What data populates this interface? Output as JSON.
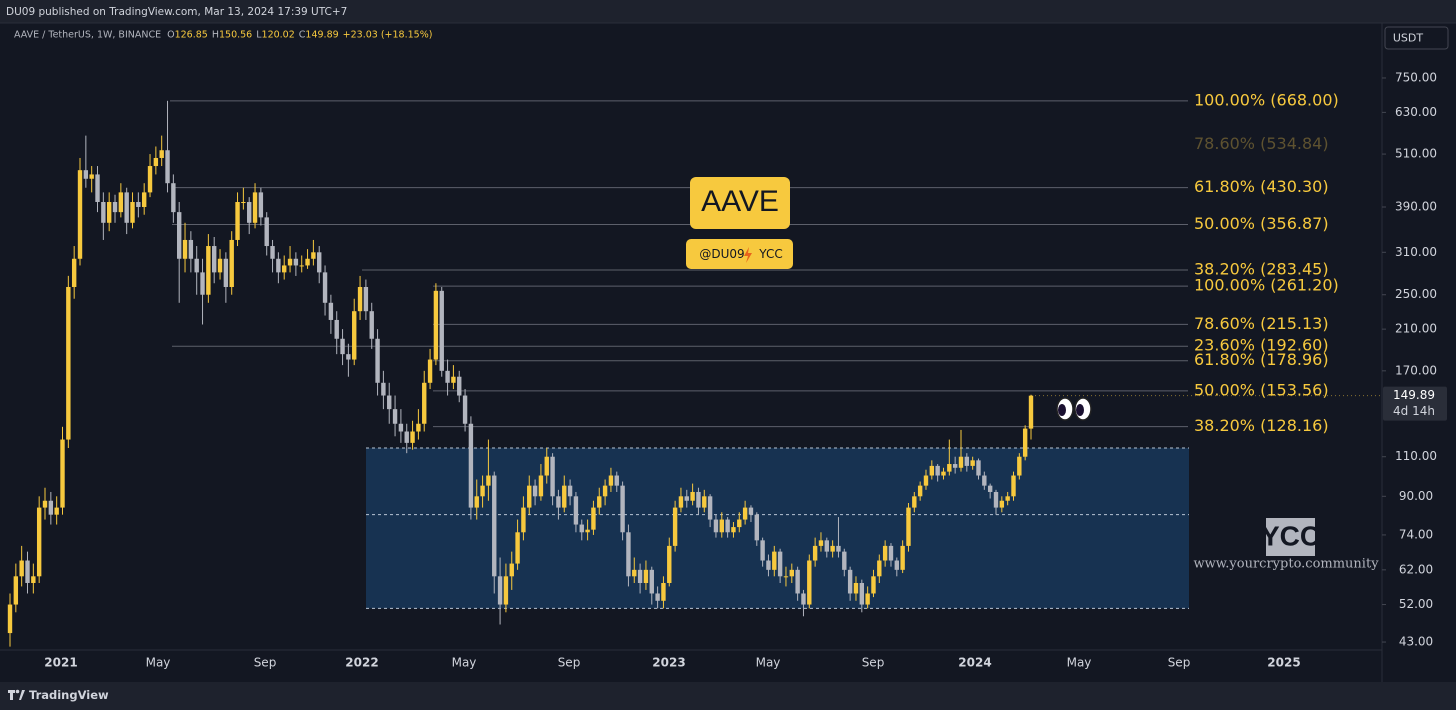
{
  "header": {
    "published": "DU09 published on TradingView.com, Mar 13, 2024 17:39 UTC+7"
  },
  "symbol": {
    "name": "AAVE / TetherUS, 1W, BINANCE",
    "ohlc": [
      {
        "label": "O",
        "value": "126.85"
      },
      {
        "label": "H",
        "value": "150.56"
      },
      {
        "label": "L",
        "value": "120.02"
      },
      {
        "label": "C",
        "value": "149.89"
      }
    ],
    "change": "+23.03 (+18.15%)"
  },
  "currency": "USDT",
  "badge": {
    "title": "AAVE",
    "author": "@DU09",
    "group": "YCC"
  },
  "watermark": {
    "logo": "YCC",
    "url": "www.yourcrypto.community"
  },
  "footer": {
    "brand": "TradingView"
  },
  "chart_data": {
    "type": "candlestick",
    "log_scale": true,
    "up_color": "#f7c93e",
    "down_color": "#b2b5be",
    "ylim": [
      41.3,
      986
    ],
    "yticks": [
      {
        "value": 750,
        "label": "750.00"
      },
      {
        "value": 630,
        "label": "630.00"
      },
      {
        "value": 510,
        "label": "510.00"
      },
      {
        "value": 390,
        "label": "390.00"
      },
      {
        "value": 310,
        "label": "310.00"
      },
      {
        "value": 250,
        "label": "250.00"
      },
      {
        "value": 210,
        "label": "210.00"
      },
      {
        "value": 170,
        "label": "170.00"
      },
      {
        "value": 110,
        "label": "110.00"
      },
      {
        "value": 90,
        "label": "90.00"
      },
      {
        "value": 74,
        "label": "74.00"
      },
      {
        "value": 62,
        "label": "62.00"
      },
      {
        "value": 52,
        "label": "52.00"
      },
      {
        "value": 43,
        "label": "43.00"
      }
    ],
    "time_labels": [
      "2021",
      "May",
      "Sep",
      "2022",
      "May",
      "Sep",
      "2023",
      "May",
      "Sep",
      "2024",
      "May",
      "Sep",
      "2025"
    ],
    "last_price_label": "149.89",
    "countdown": "4d 14h",
    "range_box": {
      "top": 115,
      "mid": 82,
      "bottom": 51,
      "color": "#183557"
    },
    "fib_sets": [
      {
        "levels": [
          {
            "label": "100.00% (668.00)",
            "value": 668
          },
          {
            "label": "78.60% (534.84)",
            "value": 534.84,
            "faded": true
          },
          {
            "label": "61.80% (430.30)",
            "value": 430.3
          },
          {
            "label": "50.00% (356.87)",
            "value": 356.87
          },
          {
            "label": "38.20% (283.45)",
            "value": 283.45
          },
          {
            "label": "23.60% (192.60)",
            "value": 192.6
          }
        ]
      },
      {
        "levels": [
          {
            "label": "100.00% (261.20)",
            "value": 261.2
          },
          {
            "label": "78.60% (215.13)",
            "value": 215.13
          },
          {
            "label": "61.80% (178.96)",
            "value": 178.96
          },
          {
            "label": "50.00% (153.56)",
            "value": 153.56
          },
          {
            "label": "38.20% (128.16)",
            "value": 128.16
          }
        ]
      }
    ],
    "candles": [
      [
        45,
        55,
        42,
        52
      ],
      [
        52,
        64,
        50,
        60
      ],
      [
        60,
        70,
        57,
        65
      ],
      [
        65,
        68,
        55,
        58
      ],
      [
        58,
        64,
        55,
        60
      ],
      [
        60,
        90,
        58,
        85
      ],
      [
        85,
        94,
        80,
        88
      ],
      [
        88,
        92,
        78,
        82
      ],
      [
        82,
        90,
        78,
        85
      ],
      [
        85,
        128,
        82,
        120
      ],
      [
        120,
        275,
        115,
        260
      ],
      [
        260,
        320,
        245,
        300
      ],
      [
        300,
        500,
        290,
        470
      ],
      [
        470,
        560,
        430,
        450
      ],
      [
        450,
        480,
        420,
        460
      ],
      [
        460,
        480,
        380,
        400
      ],
      [
        400,
        420,
        330,
        360
      ],
      [
        360,
        420,
        345,
        400
      ],
      [
        400,
        415,
        360,
        380
      ],
      [
        380,
        440,
        370,
        420
      ],
      [
        420,
        430,
        340,
        360
      ],
      [
        360,
        420,
        350,
        400
      ],
      [
        400,
        420,
        370,
        390
      ],
      [
        390,
        440,
        375,
        420
      ],
      [
        420,
        510,
        410,
        480
      ],
      [
        480,
        530,
        460,
        500
      ],
      [
        500,
        560,
        480,
        520
      ],
      [
        520,
        668,
        420,
        440
      ],
      [
        440,
        460,
        360,
        380
      ],
      [
        380,
        400,
        240,
        300
      ],
      [
        300,
        360,
        280,
        330
      ],
      [
        330,
        345,
        280,
        300
      ],
      [
        300,
        320,
        250,
        280
      ],
      [
        280,
        300,
        215,
        250
      ],
      [
        250,
        340,
        240,
        320
      ],
      [
        320,
        335,
        265,
        280
      ],
      [
        280,
        315,
        270,
        300
      ],
      [
        300,
        310,
        240,
        260
      ],
      [
        260,
        345,
        250,
        330
      ],
      [
        330,
        420,
        320,
        400
      ],
      [
        400,
        430,
        385,
        400
      ],
      [
        400,
        410,
        340,
        360
      ],
      [
        360,
        440,
        350,
        420
      ],
      [
        420,
        430,
        355,
        370
      ],
      [
        370,
        380,
        305,
        320
      ],
      [
        320,
        330,
        280,
        300
      ],
      [
        300,
        310,
        265,
        280
      ],
      [
        280,
        305,
        270,
        290
      ],
      [
        290,
        320,
        280,
        300
      ],
      [
        300,
        310,
        275,
        290
      ],
      [
        290,
        305,
        280,
        290
      ],
      [
        290,
        315,
        285,
        300
      ],
      [
        300,
        330,
        290,
        310
      ],
      [
        310,
        320,
        265,
        280
      ],
      [
        280,
        290,
        225,
        240
      ],
      [
        240,
        250,
        205,
        220
      ],
      [
        220,
        230,
        185,
        200
      ],
      [
        200,
        210,
        175,
        185
      ],
      [
        185,
        195,
        165,
        180
      ],
      [
        180,
        245,
        175,
        230
      ],
      [
        230,
        275,
        220,
        260
      ],
      [
        260,
        270,
        220,
        230
      ],
      [
        230,
        240,
        190,
        200
      ],
      [
        200,
        210,
        150,
        160
      ],
      [
        160,
        170,
        140,
        150
      ],
      [
        150,
        160,
        130,
        140
      ],
      [
        140,
        150,
        122,
        130
      ],
      [
        130,
        140,
        118,
        125
      ],
      [
        125,
        130,
        112,
        118
      ],
      [
        118,
        132,
        114,
        125
      ],
      [
        125,
        140,
        120,
        130
      ],
      [
        130,
        170,
        125,
        160
      ],
      [
        160,
        190,
        155,
        180
      ],
      [
        180,
        265,
        175,
        255
      ],
      [
        255,
        260,
        165,
        170
      ],
      [
        170,
        180,
        150,
        160
      ],
      [
        160,
        175,
        155,
        165
      ],
      [
        165,
        170,
        145,
        150
      ],
      [
        150,
        155,
        125,
        130
      ],
      [
        130,
        135,
        80,
        85
      ],
      [
        85,
        98,
        80,
        90
      ],
      [
        90,
        100,
        85,
        95
      ],
      [
        95,
        120,
        88,
        100
      ],
      [
        100,
        102,
        55,
        60
      ],
      [
        60,
        66,
        47,
        52
      ],
      [
        52,
        64,
        50,
        60
      ],
      [
        60,
        68,
        56,
        64
      ],
      [
        64,
        80,
        62,
        75
      ],
      [
        75,
        90,
        72,
        85
      ],
      [
        85,
        100,
        82,
        95
      ],
      [
        95,
        98,
        86,
        90
      ],
      [
        90,
        106,
        88,
        100
      ],
      [
        100,
        115,
        96,
        110
      ],
      [
        110,
        112,
        86,
        90
      ],
      [
        90,
        93,
        80,
        85
      ],
      [
        85,
        100,
        83,
        95
      ],
      [
        95,
        98,
        86,
        90
      ],
      [
        90,
        92,
        75,
        78
      ],
      [
        78,
        80,
        72,
        75
      ],
      [
        75,
        80,
        72,
        76
      ],
      [
        76,
        88,
        74,
        85
      ],
      [
        85,
        94,
        82,
        90
      ],
      [
        90,
        98,
        86,
        95
      ],
      [
        95,
        104,
        92,
        100
      ],
      [
        100,
        102,
        92,
        95
      ],
      [
        95,
        97,
        72,
        75
      ],
      [
        75,
        78,
        57,
        60
      ],
      [
        60,
        66,
        58,
        62
      ],
      [
        62,
        64,
        55,
        58
      ],
      [
        58,
        65,
        56,
        62
      ],
      [
        62,
        63,
        52,
        55
      ],
      [
        55,
        57,
        51,
        53
      ],
      [
        53,
        60,
        51,
        58
      ],
      [
        58,
        73,
        57,
        70
      ],
      [
        70,
        88,
        68,
        85
      ],
      [
        85,
        94,
        83,
        90
      ],
      [
        90,
        93,
        85,
        88
      ],
      [
        88,
        96,
        86,
        92
      ],
      [
        92,
        94,
        82,
        85
      ],
      [
        85,
        93,
        83,
        90
      ],
      [
        90,
        91,
        77,
        80
      ],
      [
        80,
        82,
        73,
        75
      ],
      [
        75,
        83,
        73,
        80
      ],
      [
        80,
        81,
        73,
        75
      ],
      [
        75,
        79,
        73,
        77
      ],
      [
        77,
        83,
        75,
        80
      ],
      [
        80,
        88,
        78,
        85
      ],
      [
        85,
        86,
        79,
        82
      ],
      [
        82,
        83,
        70,
        72
      ],
      [
        72,
        73,
        63,
        65
      ],
      [
        65,
        67,
        60,
        62
      ],
      [
        62,
        70,
        60,
        68
      ],
      [
        68,
        69,
        58,
        60
      ],
      [
        60,
        63,
        57,
        60
      ],
      [
        60,
        64,
        58,
        62
      ],
      [
        62,
        63,
        53,
        55
      ],
      [
        55,
        56,
        49,
        52
      ],
      [
        52,
        67,
        51,
        65
      ],
      [
        65,
        73,
        63,
        70
      ],
      [
        70,
        75,
        68,
        72
      ],
      [
        72,
        73,
        66,
        68
      ],
      [
        68,
        72,
        66,
        70
      ],
      [
        70,
        81,
        66,
        68
      ],
      [
        68,
        69,
        60,
        62
      ],
      [
        62,
        63,
        53,
        55
      ],
      [
        55,
        60,
        53,
        58
      ],
      [
        58,
        59,
        50,
        52
      ],
      [
        52,
        57,
        51,
        55
      ],
      [
        55,
        62,
        54,
        60
      ],
      [
        60,
        67,
        58,
        65
      ],
      [
        65,
        72,
        63,
        70
      ],
      [
        70,
        71,
        63,
        65
      ],
      [
        65,
        66,
        60,
        62
      ],
      [
        62,
        72,
        61,
        70
      ],
      [
        70,
        87,
        68,
        85
      ],
      [
        85,
        92,
        83,
        90
      ],
      [
        90,
        97,
        88,
        95
      ],
      [
        95,
        103,
        93,
        100
      ],
      [
        100,
        108,
        98,
        105
      ],
      [
        105,
        106,
        97,
        100
      ],
      [
        100,
        104,
        98,
        102
      ],
      [
        102,
        120,
        100,
        106
      ],
      [
        106,
        110,
        101,
        104
      ],
      [
        104,
        126,
        102,
        110
      ],
      [
        110,
        112,
        102,
        105
      ],
      [
        105,
        110,
        103,
        108
      ],
      [
        108,
        109,
        98,
        100
      ],
      [
        100,
        102,
        93,
        95
      ],
      [
        95,
        96,
        89,
        92
      ],
      [
        92,
        93,
        82,
        85
      ],
      [
        85,
        90,
        83,
        88
      ],
      [
        88,
        92,
        86,
        90
      ],
      [
        90,
        102,
        88,
        100
      ],
      [
        100,
        112,
        98,
        110
      ],
      [
        110,
        129,
        108,
        126.85
      ],
      [
        126.85,
        150.56,
        120.02,
        149.89
      ]
    ]
  }
}
